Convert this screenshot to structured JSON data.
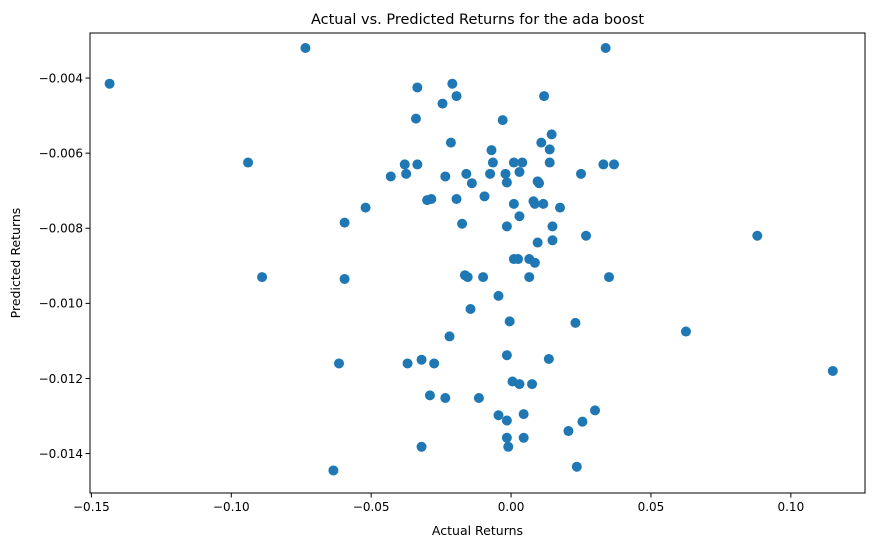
{
  "chart_data": {
    "type": "scatter",
    "title": "Actual vs. Predicted Returns for the ada boost",
    "xlabel": "Actual Returns",
    "ylabel": "Predicted Returns",
    "xlim": [
      -0.1505,
      0.1265
    ],
    "ylim": [
      -0.01505,
      -0.0028
    ],
    "xticks": [
      -0.15,
      -0.1,
      -0.05,
      0.0,
      0.05,
      0.1
    ],
    "xtick_labels": [
      "−0.15",
      "−0.10",
      "−0.05",
      "0.00",
      "0.05",
      "0.10"
    ],
    "yticks": [
      -0.014,
      -0.012,
      -0.01,
      -0.008,
      -0.006,
      -0.004
    ],
    "ytick_labels": [
      "−0.014",
      "−0.012",
      "−0.010",
      "−0.008",
      "−0.006",
      "−0.004"
    ],
    "grid": false,
    "marker_color": "#1f77b4",
    "series": [
      {
        "points": [
          [
            -0.1435,
            -0.00415
          ],
          [
            -0.0735,
            -0.0032
          ],
          [
            0.0338,
            -0.0032
          ],
          [
            -0.094,
            -0.00625
          ],
          [
            -0.089,
            -0.0093
          ],
          [
            -0.0335,
            -0.00425
          ],
          [
            -0.021,
            -0.00415
          ],
          [
            -0.0195,
            -0.00448
          ],
          [
            -0.0245,
            -0.00468
          ],
          [
            0.0118,
            -0.00448
          ],
          [
            -0.034,
            -0.00508
          ],
          [
            -0.003,
            -0.00512
          ],
          [
            0.0145,
            -0.0055
          ],
          [
            -0.0215,
            -0.00572
          ],
          [
            0.0108,
            -0.00572
          ],
          [
            0.0138,
            -0.0059
          ],
          [
            -0.007,
            -0.00592
          ],
          [
            -0.038,
            -0.0063
          ],
          [
            -0.0335,
            -0.0063
          ],
          [
            -0.0065,
            -0.00625
          ],
          [
            0.001,
            -0.00625
          ],
          [
            0.004,
            -0.00625
          ],
          [
            0.0138,
            -0.00625
          ],
          [
            0.033,
            -0.0063
          ],
          [
            0.0368,
            -0.0063
          ],
          [
            -0.0375,
            -0.00655
          ],
          [
            -0.043,
            -0.00662
          ],
          [
            -0.0235,
            -0.00662
          ],
          [
            -0.016,
            -0.00655
          ],
          [
            -0.0075,
            -0.00655
          ],
          [
            -0.002,
            -0.00655
          ],
          [
            0.003,
            -0.0065
          ],
          [
            0.025,
            -0.00655
          ],
          [
            -0.014,
            -0.0068
          ],
          [
            -0.0015,
            -0.00678
          ],
          [
            0.0095,
            -0.00675
          ],
          [
            0.01,
            -0.0068
          ],
          [
            -0.052,
            -0.00745
          ],
          [
            -0.03,
            -0.00725
          ],
          [
            -0.0285,
            -0.00722
          ],
          [
            -0.0195,
            -0.00722
          ],
          [
            -0.0095,
            -0.00715
          ],
          [
            0.008,
            -0.00728
          ],
          [
            0.0085,
            -0.00735
          ],
          [
            0.001,
            -0.00735
          ],
          [
            0.0115,
            -0.00735
          ],
          [
            0.0175,
            -0.00745
          ],
          [
            0.003,
            -0.00768
          ],
          [
            -0.0595,
            -0.00785
          ],
          [
            -0.0175,
            -0.00788
          ],
          [
            -0.0015,
            -0.00795
          ],
          [
            0.0148,
            -0.00795
          ],
          [
            0.0268,
            -0.0082
          ],
          [
            0.0095,
            -0.00838
          ],
          [
            0.0148,
            -0.00832
          ],
          [
            0.088,
            -0.0082
          ],
          [
            0.001,
            -0.00882
          ],
          [
            0.0025,
            -0.00882
          ],
          [
            0.0065,
            -0.00882
          ],
          [
            0.0085,
            -0.00892
          ],
          [
            -0.0595,
            -0.00935
          ],
          [
            -0.0165,
            -0.00925
          ],
          [
            -0.0155,
            -0.0093
          ],
          [
            -0.01,
            -0.0093
          ],
          [
            0.0065,
            -0.0093
          ],
          [
            0.035,
            -0.0093
          ],
          [
            -0.0045,
            -0.0098
          ],
          [
            -0.0145,
            -0.01015
          ],
          [
            -0.0005,
            -0.01048
          ],
          [
            0.023,
            -0.01052
          ],
          [
            0.0625,
            -0.01075
          ],
          [
            -0.022,
            -0.01088
          ],
          [
            -0.0615,
            -0.0116
          ],
          [
            -0.037,
            -0.0116
          ],
          [
            -0.032,
            -0.0115
          ],
          [
            -0.0275,
            -0.0116
          ],
          [
            -0.0015,
            -0.01138
          ],
          [
            0.0135,
            -0.01148
          ],
          [
            0.0005,
            -0.01208
          ],
          [
            0.003,
            -0.01215
          ],
          [
            0.0075,
            -0.01215
          ],
          [
            0.115,
            -0.0118
          ],
          [
            -0.029,
            -0.01245
          ],
          [
            -0.0235,
            -0.01252
          ],
          [
            -0.0115,
            -0.01252
          ],
          [
            -0.0045,
            -0.01298
          ],
          [
            0.0045,
            -0.01295
          ],
          [
            0.03,
            -0.01285
          ],
          [
            -0.0015,
            -0.01312
          ],
          [
            0.0255,
            -0.01315
          ],
          [
            0.0205,
            -0.0134
          ],
          [
            -0.032,
            -0.01382
          ],
          [
            -0.0015,
            -0.01358
          ],
          [
            0.0045,
            -0.01358
          ],
          [
            -0.001,
            -0.01382
          ],
          [
            -0.0635,
            -0.01445
          ],
          [
            0.0235,
            -0.01435
          ]
        ]
      }
    ]
  }
}
